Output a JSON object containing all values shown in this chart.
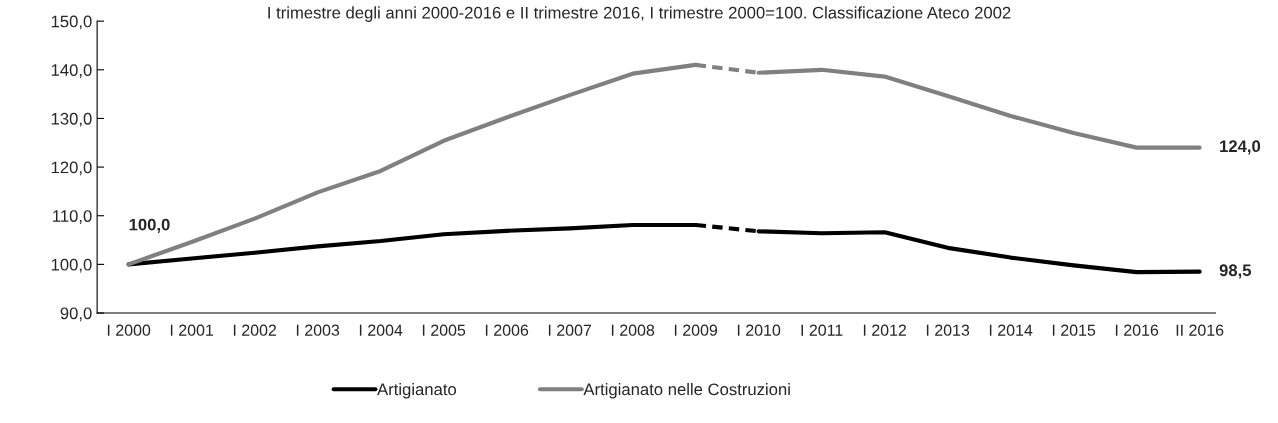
{
  "chart_data": {
    "type": "line",
    "title": "I trimestre degli anni 2000-2016 e II trimestre 2016, I trimestre 2000=100. Classificazione Ateco 2002",
    "categories": [
      "I 2000",
      "I 2001",
      "I 2002",
      "I 2003",
      "I 2004",
      "I 2005",
      "I 2006",
      "I 2007",
      "I 2008",
      "I 2009",
      "I 2010",
      "I 2011",
      "I 2012",
      "I 2013",
      "I 2014",
      "I 2015",
      "I 2016",
      "II 2016"
    ],
    "series": [
      {
        "name": "Artigianato",
        "color": "#000000",
        "line_style": "solid",
        "values": [
          100.0,
          101.2,
          102.4,
          103.7,
          104.8,
          106.2,
          106.9,
          107.4,
          108.1,
          108.1,
          null,
          null,
          null,
          null,
          null,
          null,
          null,
          null
        ]
      },
      {
        "color": "#000000",
        "line_style": "dashed",
        "values": [
          null,
          null,
          null,
          null,
          null,
          null,
          null,
          null,
          null,
          108.1,
          106.8,
          null,
          null,
          null,
          null,
          null,
          null,
          null
        ]
      },
      {
        "color": "#000000",
        "line_style": "solid",
        "values": [
          null,
          null,
          null,
          null,
          null,
          null,
          null,
          null,
          null,
          null,
          106.8,
          106.4,
          106.6,
          103.4,
          101.4,
          99.8,
          98.4,
          98.5
        ]
      },
      {
        "name": "Artigianato nelle Costruzioni",
        "color": "#808080",
        "line_style": "solid",
        "values": [
          100.0,
          104.6,
          109.4,
          114.8,
          119.2,
          125.4,
          130.2,
          134.8,
          139.2,
          141.0,
          null,
          null,
          null,
          null,
          null,
          null,
          null,
          null
        ]
      },
      {
        "color": "#808080",
        "line_style": "dashed",
        "values": [
          null,
          null,
          null,
          null,
          null,
          null,
          null,
          null,
          null,
          141.0,
          139.4,
          null,
          null,
          null,
          null,
          null,
          null,
          null
        ]
      },
      {
        "color": "#808080",
        "line_style": "solid",
        "values": [
          null,
          null,
          null,
          null,
          null,
          null,
          null,
          null,
          null,
          null,
          139.4,
          140.0,
          138.6,
          134.6,
          130.5,
          127.0,
          124.0,
          124.0
        ]
      }
    ],
    "annotations": [
      {
        "text": "100,0",
        "x": "I 2000",
        "y": 100.0
      },
      {
        "text": "124,0",
        "x": "II 2016",
        "y": 124.0
      },
      {
        "text": "98,5",
        "x": "II 2016",
        "y": 98.5
      }
    ],
    "ylim": [
      90,
      150
    ],
    "yticks": [
      {
        "value": 90,
        "label": "90,0"
      },
      {
        "value": 100,
        "label": "100,0"
      },
      {
        "value": 110,
        "label": "110,0"
      },
      {
        "value": 120,
        "label": "120,0"
      },
      {
        "value": 130,
        "label": "130,0"
      },
      {
        "value": 140,
        "label": "140,0"
      },
      {
        "value": 150,
        "label": "150,0"
      }
    ],
    "grid": false,
    "legend": "bottom",
    "marker": "none"
  }
}
